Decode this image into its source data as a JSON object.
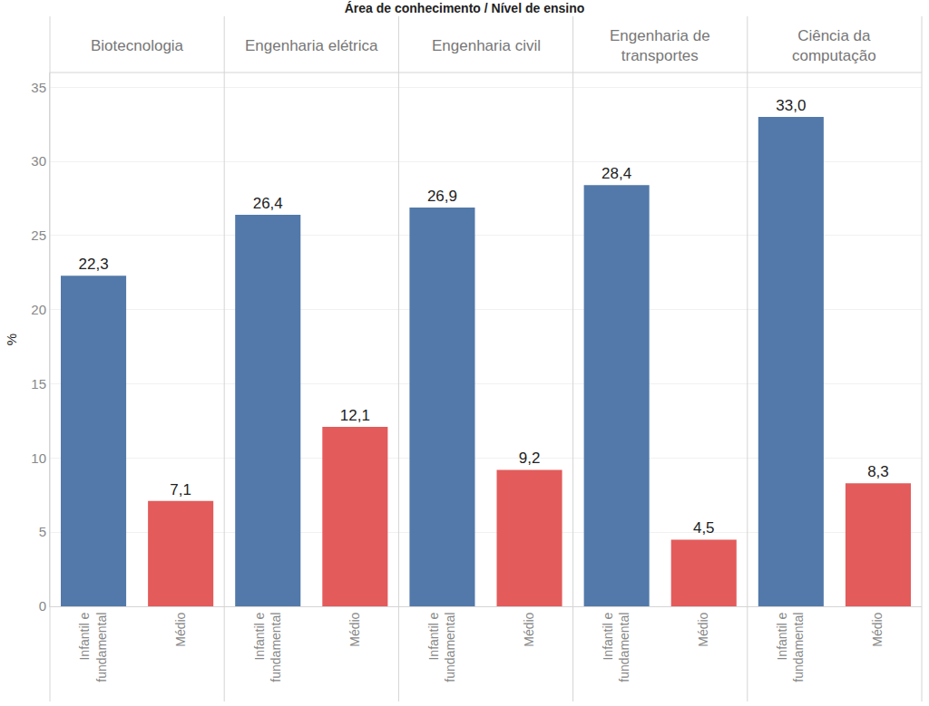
{
  "chart_data": {
    "type": "bar",
    "title": "Área de conhecimento / Nível de ensino",
    "y_label": "%",
    "categories": [
      "Infantil e fundamental",
      "Médio"
    ],
    "colors": [
      "#5279a9",
      "#e35b5b"
    ],
    "facets": [
      {
        "name": "Biotecnologia",
        "values": [
          22.3,
          7.1
        ],
        "value_labels": [
          "22,3",
          "7,1"
        ]
      },
      {
        "name": "Engenharia elétrica",
        "values": [
          26.4,
          12.1
        ],
        "value_labels": [
          "26,4",
          "12,1"
        ]
      },
      {
        "name": "Engenharia civil",
        "values": [
          26.9,
          9.2
        ],
        "value_labels": [
          "26,9",
          "9,2"
        ]
      },
      {
        "name": "Engenharia de transportes",
        "values": [
          28.4,
          4.5
        ],
        "value_labels": [
          "28,4",
          "4,5"
        ]
      },
      {
        "name": "Ciência da computação",
        "values": [
          33.0,
          8.3
        ],
        "value_labels": [
          "33,0",
          "8,3"
        ]
      }
    ],
    "ylim": [
      0,
      36
    ],
    "yticks": [
      0,
      5,
      10,
      15,
      20,
      25,
      30,
      35
    ],
    "grid": true,
    "data_labels": true
  }
}
